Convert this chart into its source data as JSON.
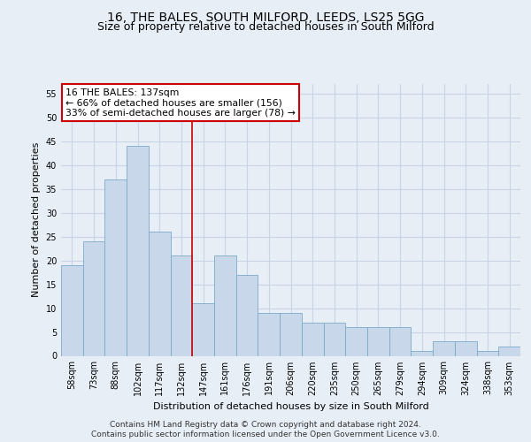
{
  "title_line1": "16, THE BALES, SOUTH MILFORD, LEEDS, LS25 5GG",
  "title_line2": "Size of property relative to detached houses in South Milford",
  "xlabel": "Distribution of detached houses by size in South Milford",
  "ylabel": "Number of detached properties",
  "bar_labels": [
    "58sqm",
    "73sqm",
    "88sqm",
    "102sqm",
    "117sqm",
    "132sqm",
    "147sqm",
    "161sqm",
    "176sqm",
    "191sqm",
    "206sqm",
    "220sqm",
    "235sqm",
    "250sqm",
    "265sqm",
    "279sqm",
    "294sqm",
    "309sqm",
    "324sqm",
    "338sqm",
    "353sqm"
  ],
  "bar_heights": [
    19,
    24,
    37,
    44,
    26,
    21,
    11,
    21,
    17,
    9,
    9,
    7,
    7,
    6,
    6,
    6,
    1,
    3,
    3,
    1,
    2
  ],
  "bar_color": "#c8d8ea",
  "bar_edge_color": "#7aaac8",
  "bar_width": 1.0,
  "ylim": [
    0,
    57
  ],
  "yticks": [
    0,
    5,
    10,
    15,
    20,
    25,
    30,
    35,
    40,
    45,
    50,
    55
  ],
  "grid_color": "#c8d4e4",
  "annotation_text": "16 THE BALES: 137sqm\n← 66% of detached houses are smaller (156)\n33% of semi-detached houses are larger (78) →",
  "annotation_box_facecolor": "#ffffff",
  "annotation_box_edgecolor": "#cc0000",
  "vline_color": "#cc0000",
  "vline_x": 5.5,
  "footer1": "Contains HM Land Registry data © Crown copyright and database right 2024.",
  "footer2": "Contains public sector information licensed under the Open Government Licence v3.0.",
  "bg_color": "#e8eef6",
  "plot_bg_color": "#e8eef6",
  "title_fontsize": 10,
  "subtitle_fontsize": 9,
  "ylabel_fontsize": 8,
  "xlabel_fontsize": 8,
  "tick_fontsize": 7,
  "footer_fontsize": 6.5
}
